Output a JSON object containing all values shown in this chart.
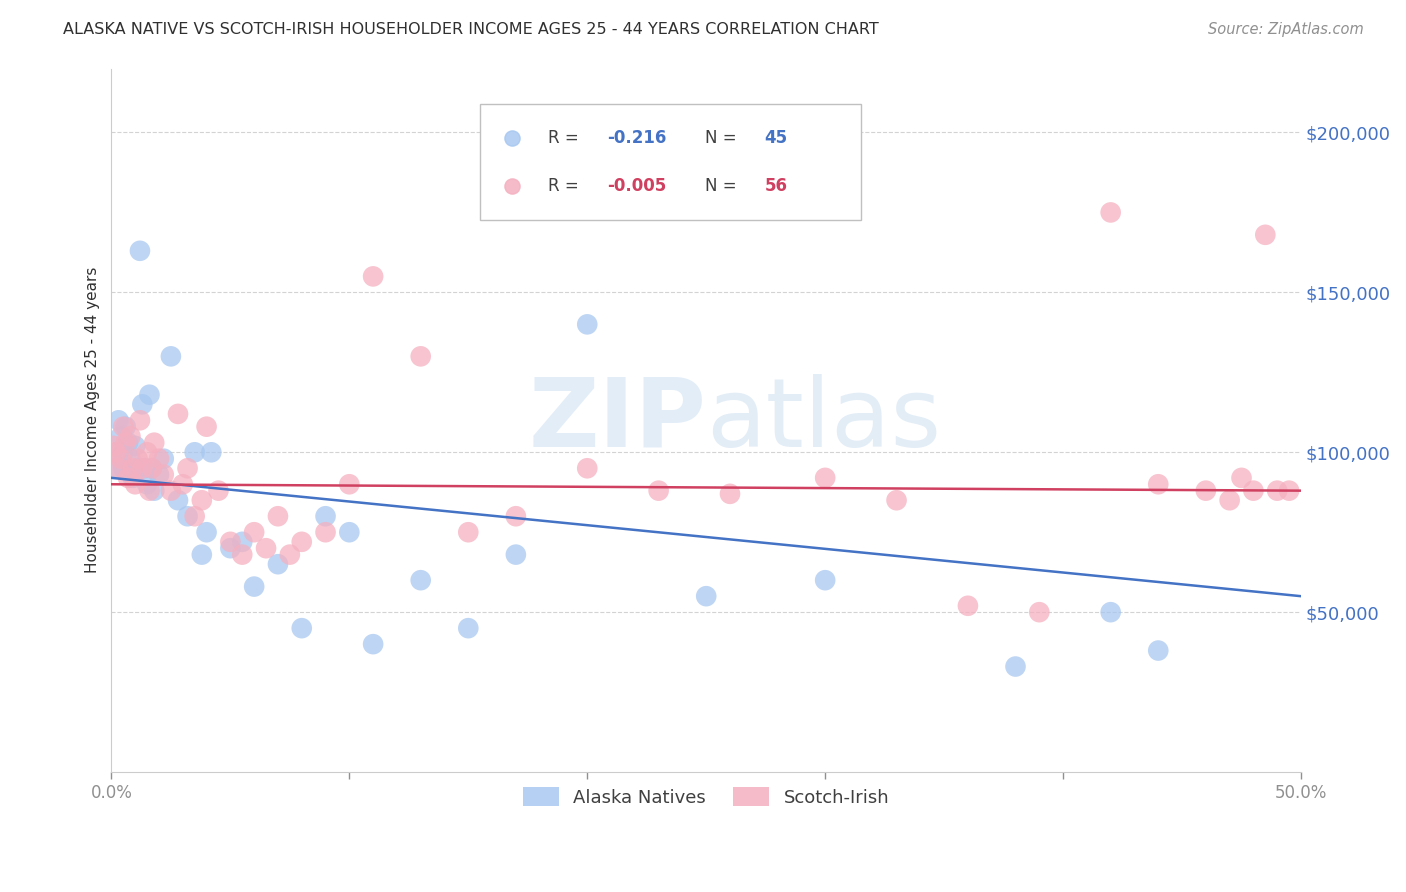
{
  "title": "ALASKA NATIVE VS SCOTCH-IRISH HOUSEHOLDER INCOME AGES 25 - 44 YEARS CORRELATION CHART",
  "source": "Source: ZipAtlas.com",
  "ylabel": "Householder Income Ages 25 - 44 years",
  "xlim": [
    0.0,
    0.5
  ],
  "ylim": [
    0,
    220000
  ],
  "alaska_R": -0.216,
  "alaska_N": 45,
  "scotch_R": -0.005,
  "scotch_N": 56,
  "alaska_color": "#a8c8f0",
  "scotch_color": "#f5b0c0",
  "alaska_line_color": "#4472c4",
  "scotch_line_color": "#d04060",
  "background_color": "#ffffff",
  "grid_color": "#c8c8c8",
  "title_color": "#303030",
  "source_color": "#909090",
  "ylabel_color": "#303030",
  "ytick_color": "#4472c4",
  "xtick_color": "#909090",
  "alaska_x": [
    0.001,
    0.002,
    0.003,
    0.004,
    0.005,
    0.005,
    0.006,
    0.007,
    0.008,
    0.009,
    0.01,
    0.011,
    0.012,
    0.013,
    0.014,
    0.015,
    0.016,
    0.017,
    0.018,
    0.02,
    0.022,
    0.025,
    0.028,
    0.032,
    0.035,
    0.038,
    0.04,
    0.042,
    0.05,
    0.055,
    0.06,
    0.07,
    0.08,
    0.09,
    0.1,
    0.11,
    0.13,
    0.15,
    0.17,
    0.2,
    0.25,
    0.3,
    0.38,
    0.42,
    0.44
  ],
  "alaska_y": [
    95000,
    100000,
    110000,
    105000,
    100000,
    95000,
    108000,
    103000,
    98000,
    92000,
    102000,
    95000,
    163000,
    115000,
    95000,
    90000,
    118000,
    95000,
    88000,
    93000,
    98000,
    130000,
    85000,
    80000,
    100000,
    68000,
    75000,
    100000,
    70000,
    72000,
    58000,
    65000,
    45000,
    80000,
    75000,
    40000,
    60000,
    45000,
    68000,
    140000,
    55000,
    60000,
    33000,
    50000,
    38000
  ],
  "scotch_x": [
    0.001,
    0.002,
    0.003,
    0.004,
    0.005,
    0.006,
    0.007,
    0.008,
    0.009,
    0.01,
    0.011,
    0.012,
    0.013,
    0.015,
    0.016,
    0.017,
    0.018,
    0.02,
    0.022,
    0.025,
    0.028,
    0.03,
    0.032,
    0.035,
    0.038,
    0.04,
    0.045,
    0.05,
    0.055,
    0.06,
    0.065,
    0.07,
    0.075,
    0.08,
    0.09,
    0.1,
    0.11,
    0.13,
    0.15,
    0.17,
    0.2,
    0.23,
    0.26,
    0.3,
    0.33,
    0.36,
    0.39,
    0.42,
    0.44,
    0.46,
    0.47,
    0.475,
    0.48,
    0.485,
    0.49,
    0.495
  ],
  "scotch_y": [
    102000,
    100000,
    95000,
    98000,
    108000,
    103000,
    92000,
    105000,
    95000,
    90000,
    98000,
    110000,
    95000,
    100000,
    88000,
    95000,
    103000,
    98000,
    93000,
    88000,
    112000,
    90000,
    95000,
    80000,
    85000,
    108000,
    88000,
    72000,
    68000,
    75000,
    70000,
    80000,
    68000,
    72000,
    75000,
    90000,
    155000,
    130000,
    75000,
    80000,
    95000,
    88000,
    87000,
    92000,
    85000,
    52000,
    50000,
    175000,
    90000,
    88000,
    85000,
    92000,
    88000,
    168000,
    88000,
    88000
  ],
  "watermark_zip": "ZIP",
  "watermark_atlas": "atlas"
}
